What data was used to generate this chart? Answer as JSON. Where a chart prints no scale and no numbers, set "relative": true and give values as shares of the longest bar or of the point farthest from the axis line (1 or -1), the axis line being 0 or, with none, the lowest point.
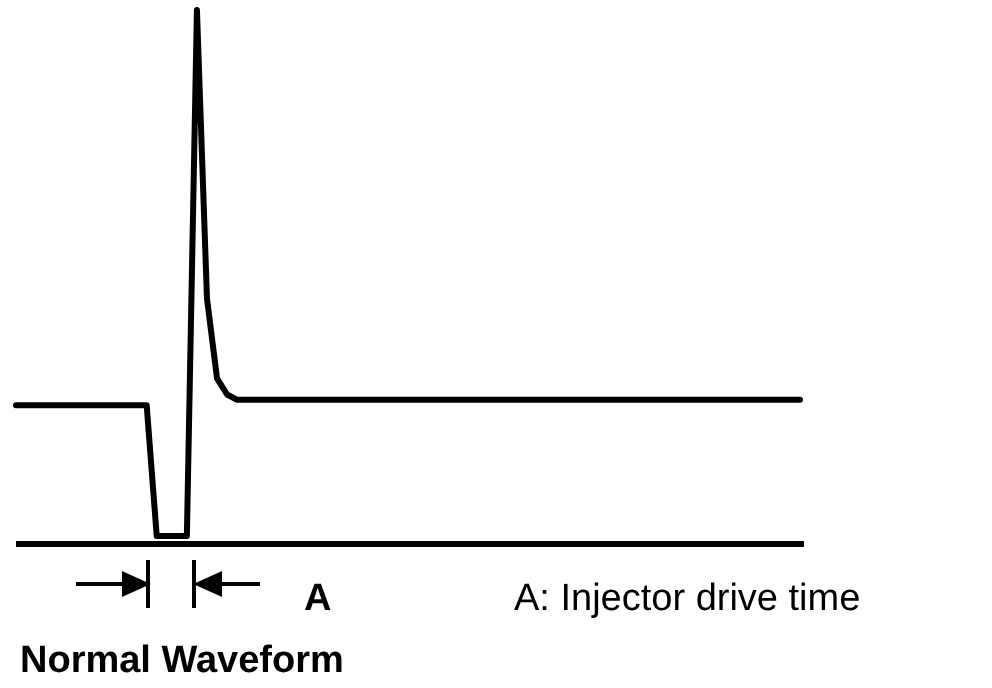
{
  "chart_data": {
    "type": "line",
    "relative": true,
    "title": "Normal Waveform",
    "color": "#000000",
    "marker": "none",
    "categories": [
      null,
      null,
      null,
      null,
      null,
      null,
      null,
      null,
      null,
      null,
      null,
      null,
      null,
      null,
      null,
      null,
      null,
      null,
      null,
      null,
      null,
      null,
      null,
      null,
      null,
      null,
      null,
      null,
      null,
      null,
      null,
      null,
      null,
      null,
      null,
      null,
      null,
      null,
      null,
      null,
      null,
      null,
      null,
      null,
      null,
      null,
      null,
      null,
      null,
      null,
      null,
      null,
      null,
      null,
      null,
      null,
      null,
      null,
      null,
      null,
      null,
      null,
      null,
      null,
      null,
      null,
      null,
      null,
      null,
      null,
      null,
      null,
      null,
      null,
      null,
      null,
      null,
      null,
      null
    ],
    "values": [
      0.26,
      0.26,
      0.26,
      0.26,
      0.26,
      0.26,
      0.26,
      0.26,
      0.26,
      0.26,
      0.26,
      0.26,
      0.26,
      0.26,
      0.015,
      0.015,
      0.015,
      0.015,
      1,
      0.46,
      0.31,
      0.28,
      0.27,
      0.27,
      0.27,
      0.27,
      0.27,
      0.27,
      0.27,
      0.27,
      0.27,
      0.27,
      0.27,
      0.27,
      0.27,
      0.27,
      0.27,
      0.27,
      0.27,
      0.27,
      0.27,
      0.27,
      0.27,
      0.27,
      0.27,
      0.27,
      0.27,
      0.27,
      0.27,
      0.27,
      0.27,
      0.27,
      0.27,
      0.27,
      0.27,
      0.27,
      0.27,
      0.27,
      0.27,
      0.27,
      0.27,
      0.27,
      0.27,
      0.27,
      0.27,
      0.27,
      0.27,
      0.27,
      0.27,
      0.27,
      0.27,
      0.27,
      0.27,
      0.27,
      0.27,
      0.27,
      0.27,
      0.27,
      0.27
    ],
    "annotations": [
      "A",
      "A: Injector drive time"
    ]
  }
}
